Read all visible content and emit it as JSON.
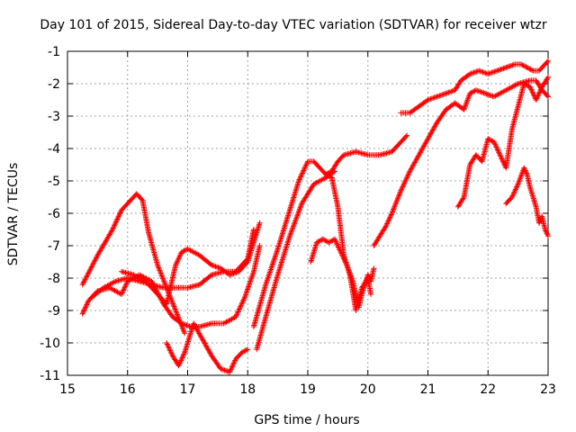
{
  "chart_data": {
    "type": "scatter",
    "title": "Day 101 of 2015, Sidereal Day-to-day VTEC variation (SDTVAR) for receiver wtzr",
    "xlabel": "GPS time / hours",
    "ylabel": "SDTVAR / TECUs",
    "xlim": [
      15,
      23
    ],
    "ylim": [
      -11,
      -1
    ],
    "xticks": [
      "15",
      "16",
      "17",
      "18",
      "19",
      "20",
      "21",
      "22",
      "23"
    ],
    "yticks": [
      "-1",
      "-2",
      "-3",
      "-4",
      "-5",
      "-6",
      "-7",
      "-8",
      "-9",
      "-10",
      "-11"
    ],
    "grid": true,
    "marker": "plus",
    "color": "#ff0000",
    "series": [
      {
        "x": [
          15.25,
          15.5,
          15.75,
          15.9,
          16.05,
          16.15,
          16.25,
          16.35,
          16.5,
          16.65,
          16.8,
          16.95
        ],
        "y": [
          -8.2,
          -7.3,
          -6.5,
          -5.9,
          -5.6,
          -5.4,
          -5.6,
          -6.6,
          -7.6,
          -8.3,
          -9.0,
          -9.7
        ]
      },
      {
        "x": [
          15.25,
          15.35,
          15.5,
          15.7,
          15.9,
          16.0,
          16.2,
          16.4,
          16.6,
          16.75,
          16.9,
          17.05,
          17.2,
          17.4,
          17.6,
          17.8,
          17.95,
          18.1,
          18.2
        ],
        "y": [
          -9.1,
          -8.7,
          -8.4,
          -8.3,
          -8.5,
          -8.1,
          -7.9,
          -8.1,
          -8.8,
          -9.2,
          -9.4,
          -9.5,
          -9.5,
          -9.4,
          -9.4,
          -9.2,
          -8.6,
          -7.8,
          -7.0
        ]
      },
      {
        "x": [
          15.4,
          15.6,
          15.8,
          16.0,
          16.2,
          16.4,
          16.6,
          16.8,
          17.0,
          17.2,
          17.4,
          17.6,
          17.8,
          18.0,
          18.1
        ],
        "y": [
          -8.6,
          -8.3,
          -8.1,
          -8.0,
          -8.1,
          -8.2,
          -8.3,
          -8.3,
          -8.3,
          -8.2,
          -7.9,
          -7.8,
          -7.8,
          -7.4,
          -6.5
        ]
      },
      {
        "x": [
          15.9,
          16.1,
          16.3,
          16.5,
          16.65,
          16.8,
          16.9,
          17.0,
          17.2,
          17.4,
          17.55,
          17.7,
          17.85,
          18.0,
          18.2
        ],
        "y": [
          -7.8,
          -7.9,
          -8.1,
          -8.5,
          -8.8,
          -7.6,
          -7.2,
          -7.1,
          -7.3,
          -7.6,
          -7.7,
          -7.9,
          -7.8,
          -7.5,
          -6.3
        ]
      },
      {
        "x": [
          16.65,
          16.75,
          16.85,
          16.95,
          17.1,
          17.25,
          17.4,
          17.55,
          17.7,
          17.8,
          17.9,
          18.0
        ],
        "y": [
          -10.0,
          -10.4,
          -10.7,
          -10.3,
          -9.4,
          -9.9,
          -10.4,
          -10.8,
          -10.9,
          -10.5,
          -10.3,
          -10.2
        ]
      },
      {
        "x": [
          18.1,
          18.3,
          18.5,
          18.7,
          18.85,
          19.0,
          19.1,
          19.2,
          19.3,
          19.4,
          19.5,
          19.6,
          19.8,
          20.0,
          20.2,
          20.4,
          20.55,
          20.65
        ],
        "y": [
          -9.5,
          -8.2,
          -7.1,
          -5.9,
          -5.0,
          -4.4,
          -4.4,
          -4.6,
          -4.8,
          -4.7,
          -4.4,
          -4.2,
          -4.1,
          -4.2,
          -4.2,
          -4.1,
          -3.8,
          -3.6
        ]
      },
      {
        "x": [
          18.15,
          18.3,
          18.5,
          18.7,
          18.9,
          19.1,
          19.3,
          19.45
        ],
        "y": [
          -10.2,
          -9.2,
          -7.9,
          -6.7,
          -5.7,
          -5.1,
          -4.9,
          -4.7
        ]
      },
      {
        "x": [
          19.05,
          19.15,
          19.25,
          19.35,
          19.45,
          19.55,
          19.65,
          19.75,
          19.85,
          19.9,
          20.0,
          20.05,
          20.1
        ],
        "y": [
          -7.5,
          -6.9,
          -6.8,
          -6.9,
          -6.8,
          -7.2,
          -7.6,
          -8.1,
          -8.9,
          -8.5,
          -7.9,
          -8.1,
          -7.7
        ]
      },
      {
        "x": [
          19.3,
          19.4,
          19.5,
          19.6,
          19.7,
          19.8,
          19.9,
          20.0,
          20.05
        ],
        "y": [
          -4.8,
          -4.9,
          -5.8,
          -7.3,
          -7.9,
          -9.0,
          -8.3,
          -8.0,
          -8.5
        ]
      },
      {
        "x": [
          20.1,
          20.2,
          20.3,
          20.4,
          20.55,
          20.7,
          20.85,
          21.0,
          21.15,
          21.3,
          21.45,
          21.6,
          21.7,
          21.8,
          21.95,
          22.1,
          22.3,
          22.5,
          22.7,
          22.8,
          22.9,
          23.0
        ],
        "y": [
          -7.0,
          -6.7,
          -6.4,
          -6.0,
          -5.3,
          -4.7,
          -4.2,
          -3.7,
          -3.2,
          -2.8,
          -2.6,
          -2.8,
          -2.3,
          -2.2,
          -2.3,
          -2.4,
          -2.2,
          -2.0,
          -1.9,
          -1.9,
          -2.2,
          -2.4
        ]
      },
      {
        "x": [
          20.55,
          20.7,
          20.85,
          21.0,
          21.15,
          21.3,
          21.45,
          21.55,
          21.7,
          21.85,
          22.0,
          22.15,
          22.3,
          22.45,
          22.55,
          22.65,
          22.75,
          22.85,
          22.95,
          23.0
        ],
        "y": [
          -2.9,
          -2.9,
          -2.7,
          -2.5,
          -2.4,
          -2.3,
          -2.2,
          -1.9,
          -1.7,
          -1.6,
          -1.7,
          -1.6,
          -1.5,
          -1.4,
          -1.4,
          -1.5,
          -1.6,
          -1.6,
          -1.4,
          -1.3
        ]
      },
      {
        "x": [
          21.5,
          21.6,
          21.7,
          21.8,
          21.9,
          22.0,
          22.1,
          22.2,
          22.3,
          22.4,
          22.5,
          22.6,
          22.7,
          22.8,
          22.9,
          23.0
        ],
        "y": [
          -5.8,
          -5.5,
          -4.5,
          -4.2,
          -4.4,
          -3.7,
          -3.8,
          -4.2,
          -4.6,
          -3.4,
          -2.7,
          -2.0,
          -2.1,
          -2.5,
          -2.1,
          -1.8
        ]
      },
      {
        "x": [
          22.3,
          22.4,
          22.5,
          22.6,
          22.65,
          22.7,
          22.8,
          22.85,
          22.9,
          22.95,
          23.0
        ],
        "y": [
          -5.7,
          -5.5,
          -5.1,
          -4.6,
          -4.8,
          -5.2,
          -5.8,
          -6.3,
          -6.1,
          -6.5,
          -6.7
        ]
      }
    ]
  }
}
